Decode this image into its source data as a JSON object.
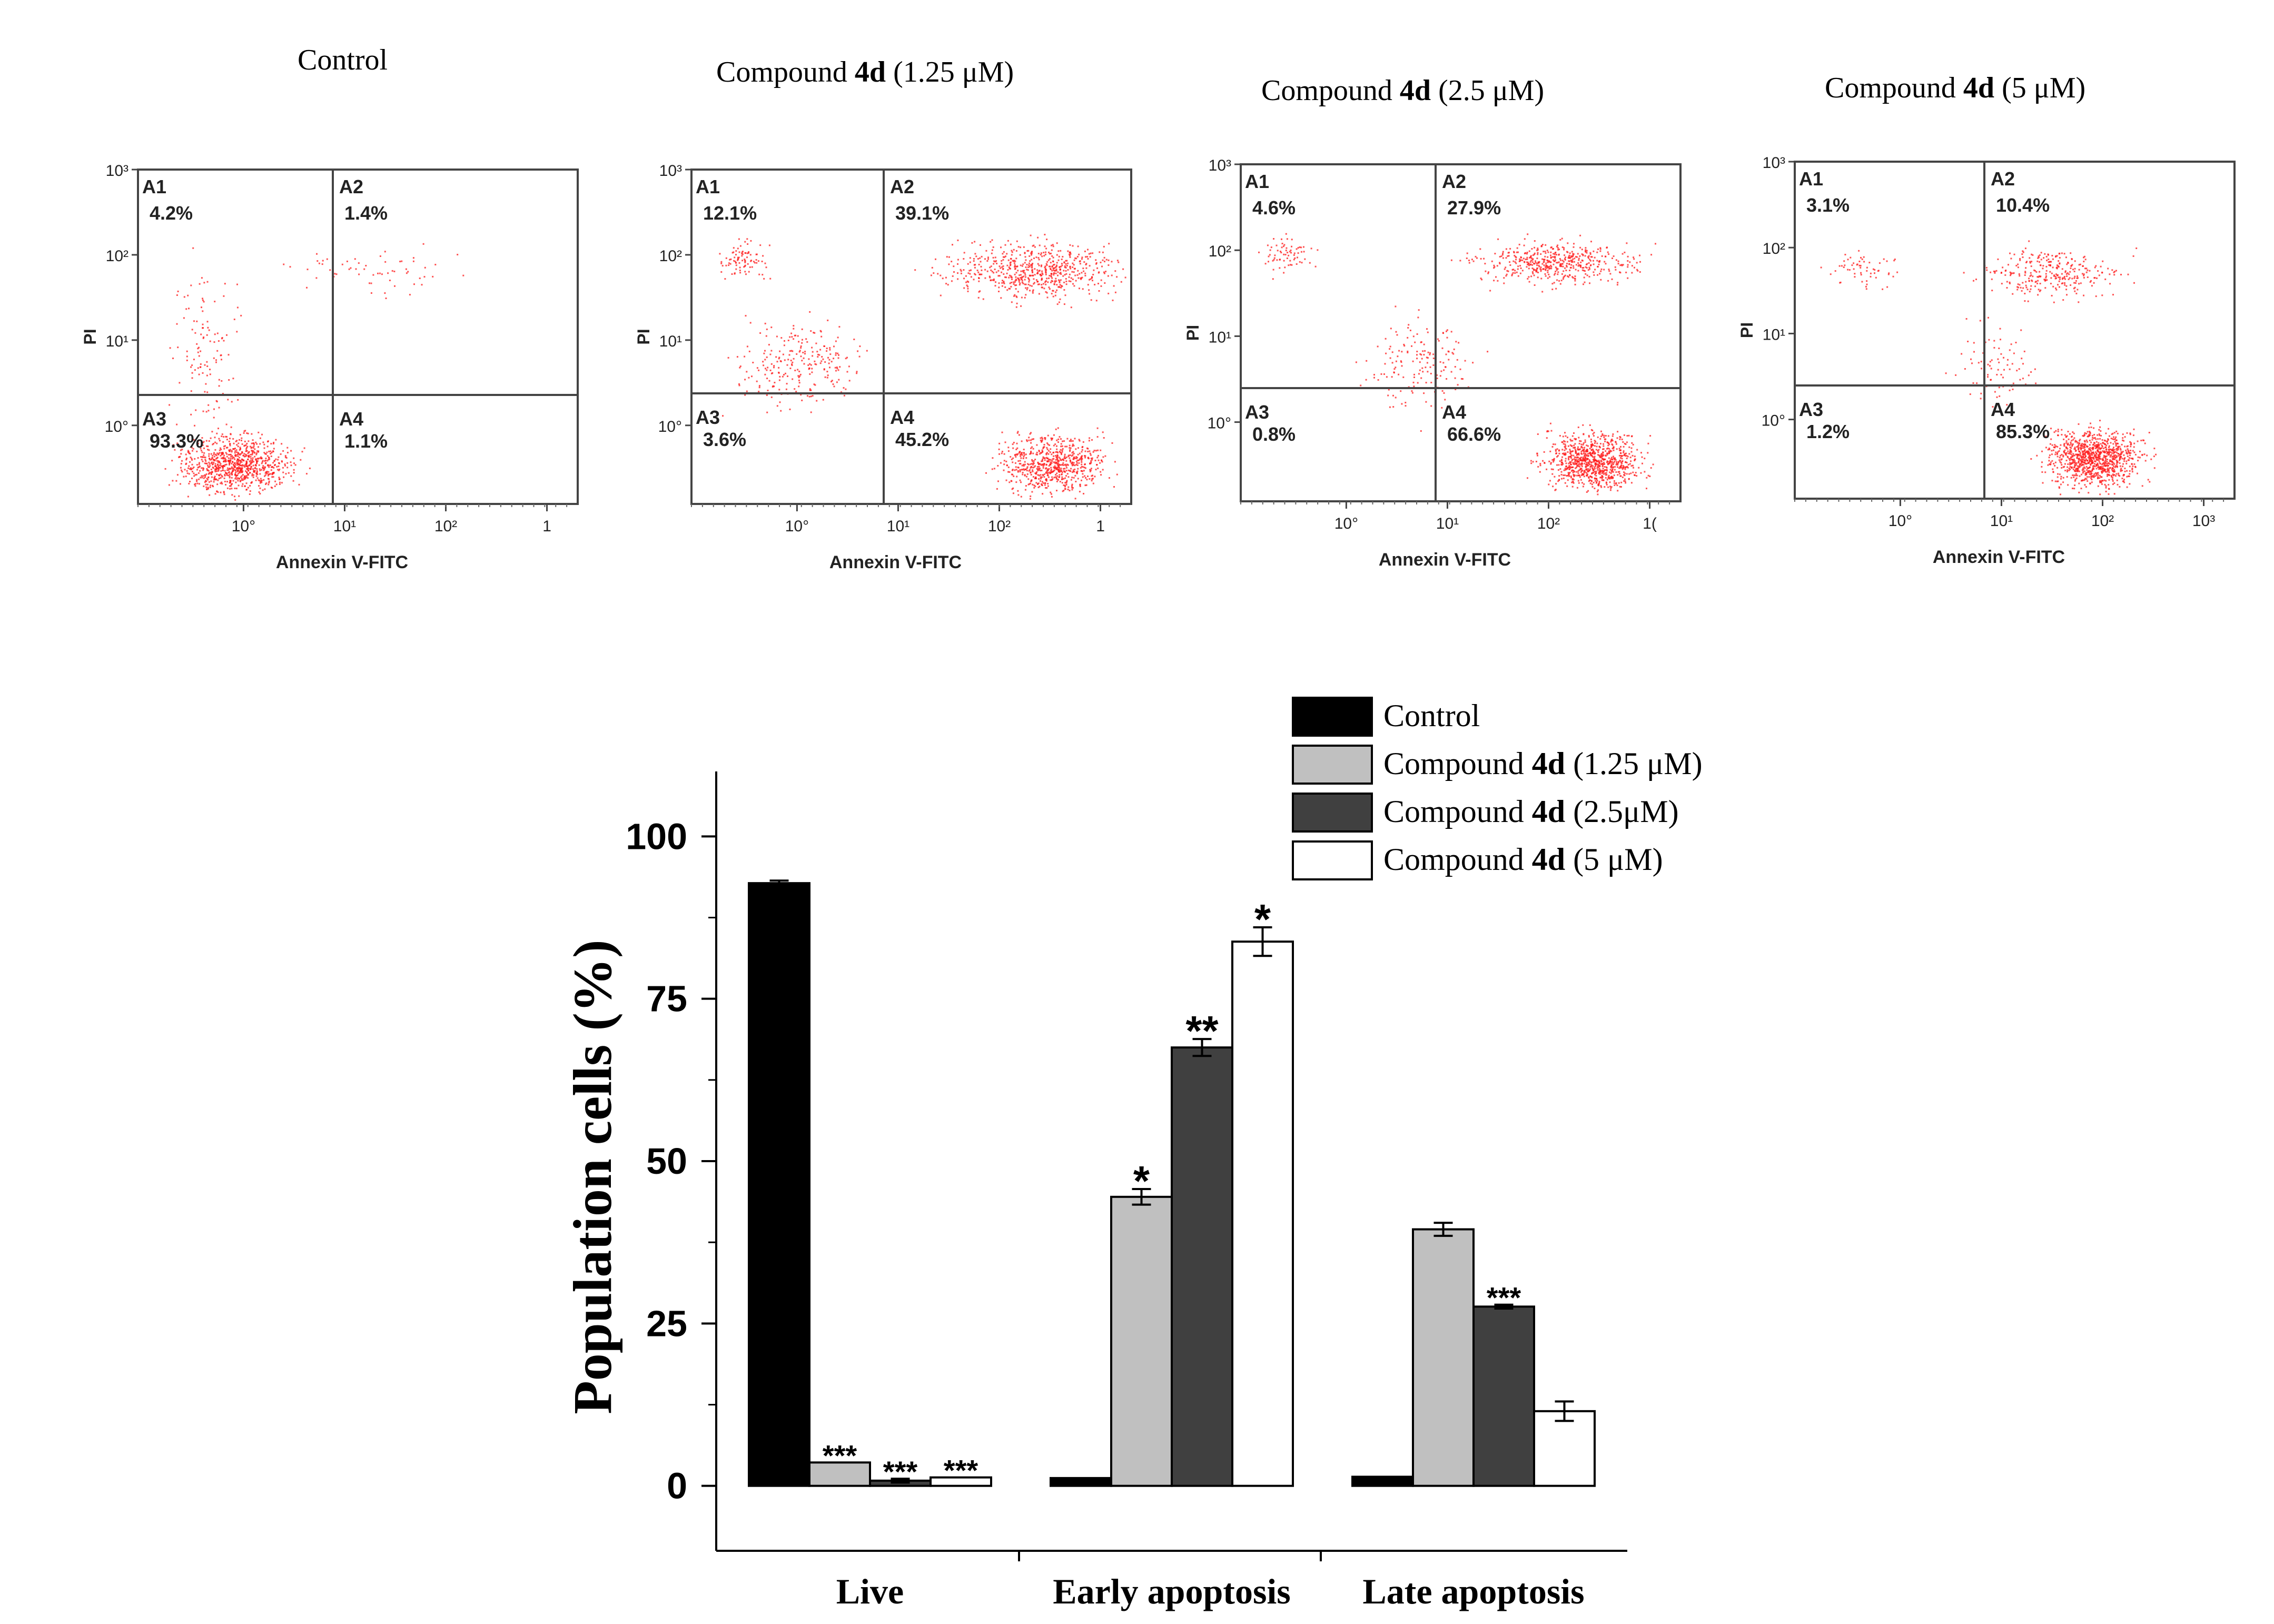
{
  "flow_panels": [
    {
      "title_prefix": "Control",
      "title_bold": "",
      "title_suffix": "",
      "quadrants": [
        {
          "label": "A1",
          "value": "4.2%"
        },
        {
          "label": "A2",
          "value": "1.4%"
        },
        {
          "label": "A3",
          "value": "93.3%"
        },
        {
          "label": "A4",
          "value": "1.1%"
        }
      ],
      "x_ticks": [
        "10°",
        "10¹",
        "10²",
        "1"
      ]
    },
    {
      "title_prefix": "Compound ",
      "title_bold": "4d",
      "title_suffix": " (1.25 μM)",
      "quadrants": [
        {
          "label": "A1",
          "value": "12.1%"
        },
        {
          "label": "A2",
          "value": "39.1%"
        },
        {
          "label": "A3",
          "value": "3.6%"
        },
        {
          "label": "A4",
          "value": "45.2%"
        }
      ],
      "x_ticks": [
        "10°",
        "10¹",
        "10²",
        "1"
      ]
    },
    {
      "title_prefix": "Compound ",
      "title_bold": "4d",
      "title_suffix": " (2.5 μM)",
      "quadrants": [
        {
          "label": "A1",
          "value": "4.6%"
        },
        {
          "label": "A2",
          "value": "27.9%"
        },
        {
          "label": "A3",
          "value": "0.8%"
        },
        {
          "label": "A4",
          "value": "66.6%"
        }
      ],
      "x_ticks": [
        "10°",
        "10¹",
        "10²",
        "1("
      ]
    },
    {
      "title_prefix": "Compound ",
      "title_bold": "4d",
      "title_suffix": " (5 μM)",
      "quadrants": [
        {
          "label": "A1",
          "value": "3.1%"
        },
        {
          "label": "A2",
          "value": "10.4%"
        },
        {
          "label": "A3",
          "value": "1.2%"
        },
        {
          "label": "A4",
          "value": "85.3%"
        }
      ],
      "x_ticks": [
        "10°",
        "10¹",
        "10²",
        "10³"
      ]
    }
  ],
  "flow_axes": {
    "xlabel": "Annexin V-FITC",
    "ylabel": "PI",
    "y_ticks": [
      "10³",
      "10²",
      "10¹",
      "10°"
    ]
  },
  "chart_data": {
    "type": "bar",
    "categories": [
      "Live",
      "Early apoptosis",
      "Late apoptosis"
    ],
    "series": [
      {
        "name": "Control",
        "name_prefix": "Control",
        "name_bold": "",
        "name_suffix": "",
        "color": "#000000",
        "values": [
          92.8,
          1.2,
          1.4
        ],
        "errors": [
          0.4,
          0,
          0
        ],
        "sig": [
          "",
          "",
          ""
        ]
      },
      {
        "name": "Compound 4d (1.25 μM)",
        "name_prefix": "Compound ",
        "name_bold": "4d",
        "name_suffix": " (1.25 μM)",
        "color": "#c0c0c0",
        "values": [
          3.6,
          44.5,
          39.5
        ],
        "errors": [
          0,
          1.2,
          1.0
        ],
        "sig": [
          "***",
          "*",
          ""
        ]
      },
      {
        "name": "Compound 4d (2.5μM)",
        "name_prefix": "Compound ",
        "name_bold": "4d",
        "name_suffix": " (2.5μM)",
        "color": "#404040",
        "values": [
          0.8,
          67.5,
          27.6
        ],
        "errors": [
          0.3,
          1.3,
          0.3
        ],
        "sig": [
          "***",
          "**",
          "***"
        ]
      },
      {
        "name": "Compound 4d (5 μM)",
        "name_prefix": "Compound ",
        "name_bold": "4d",
        "name_suffix": " (5 μM)",
        "color": "#ffffff",
        "values": [
          1.3,
          83.8,
          11.5
        ],
        "errors": [
          0,
          2.2,
          1.5
        ],
        "sig": [
          "***",
          "*",
          ""
        ]
      }
    ],
    "ylabel": "Population cells (%)",
    "ylim": [
      -10,
      110
    ],
    "yticks": [
      0,
      25,
      50,
      75,
      100
    ],
    "legend": "top-right"
  }
}
